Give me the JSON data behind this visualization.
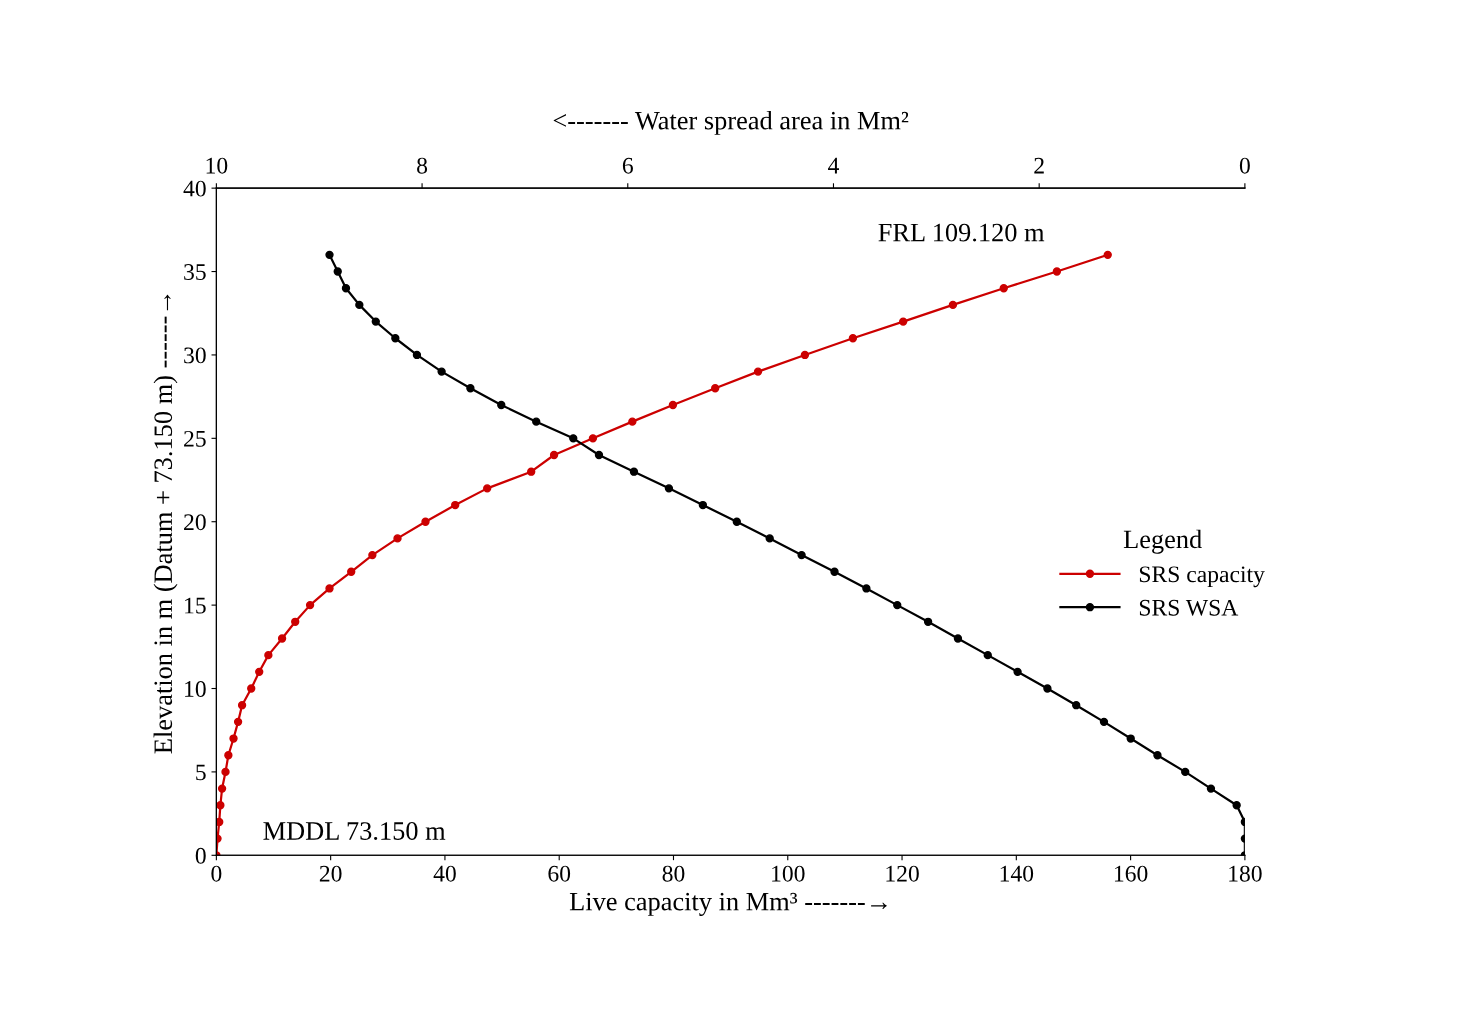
{
  "chart_data": {
    "type": "line",
    "xlabel": "Live capacity in Mm³ -------→",
    "x2label": "<------- Water spread area in Mm²",
    "ylabel": "Elevation in m (Datum + 73.150 m) ------→",
    "legend_title": "Legend",
    "legend": "right",
    "marker": "circle",
    "line_style": "solid",
    "grid": false,
    "xlim": [
      0,
      180
    ],
    "xticks": [
      0,
      20,
      40,
      60,
      80,
      100,
      120,
      140,
      160,
      180
    ],
    "x2lim": [
      10,
      0
    ],
    "x2ticks": [
      10,
      8,
      6,
      4,
      2,
      0
    ],
    "ylim": [
      0,
      40
    ],
    "yticks": [
      0,
      5,
      10,
      15,
      20,
      25,
      30,
      35,
      40
    ],
    "series": [
      {
        "name": "SRS capacity",
        "color": "#cc0000",
        "x": [
          0,
          0.2,
          0.5,
          0.7,
          1.0,
          1.6,
          2.1,
          3.0,
          3.8,
          4.5,
          6.1,
          7.5,
          9.1,
          11.5,
          13.8,
          16.4,
          19.8,
          23.6,
          27.3,
          31.7,
          36.6,
          41.8,
          47.4,
          55.1,
          59.1,
          65.9,
          72.8,
          79.9,
          87.3,
          94.8,
          103.0,
          111.4,
          120.2,
          128.9,
          137.8,
          147.1,
          156.0
        ],
        "values": [
          0,
          1,
          2,
          3,
          4,
          5,
          6,
          7,
          8,
          9,
          10,
          11,
          12,
          13,
          14,
          15,
          16,
          17,
          18,
          19,
          20,
          21,
          22,
          23,
          24,
          25,
          26,
          27,
          28,
          29,
          30,
          31,
          32,
          33,
          34,
          35,
          36
        ]
      },
      {
        "name": "SRS WSA",
        "color": "#000000",
        "axis": "x2",
        "x": [
          0,
          0,
          0,
          0.08,
          0.33,
          0.58,
          0.85,
          1.11,
          1.37,
          1.64,
          1.92,
          2.21,
          2.5,
          2.79,
          3.08,
          3.38,
          3.68,
          3.99,
          4.31,
          4.62,
          4.94,
          5.27,
          5.6,
          5.94,
          6.28,
          6.53,
          6.89,
          7.23,
          7.53,
          7.81,
          8.05,
          8.26,
          8.45,
          8.61,
          8.74,
          8.82,
          8.9
        ],
        "values": [
          0,
          1,
          2,
          3,
          4,
          5,
          6,
          7,
          8,
          9,
          10,
          11,
          12,
          13,
          14,
          15,
          16,
          17,
          18,
          19,
          20,
          21,
          22,
          23,
          24,
          25,
          26,
          27,
          28,
          29,
          30,
          31,
          32,
          33,
          34,
          35,
          36
        ]
      }
    ],
    "annotations": [
      "FRL 109.120 m",
      "MDDL 73.150 m"
    ]
  }
}
